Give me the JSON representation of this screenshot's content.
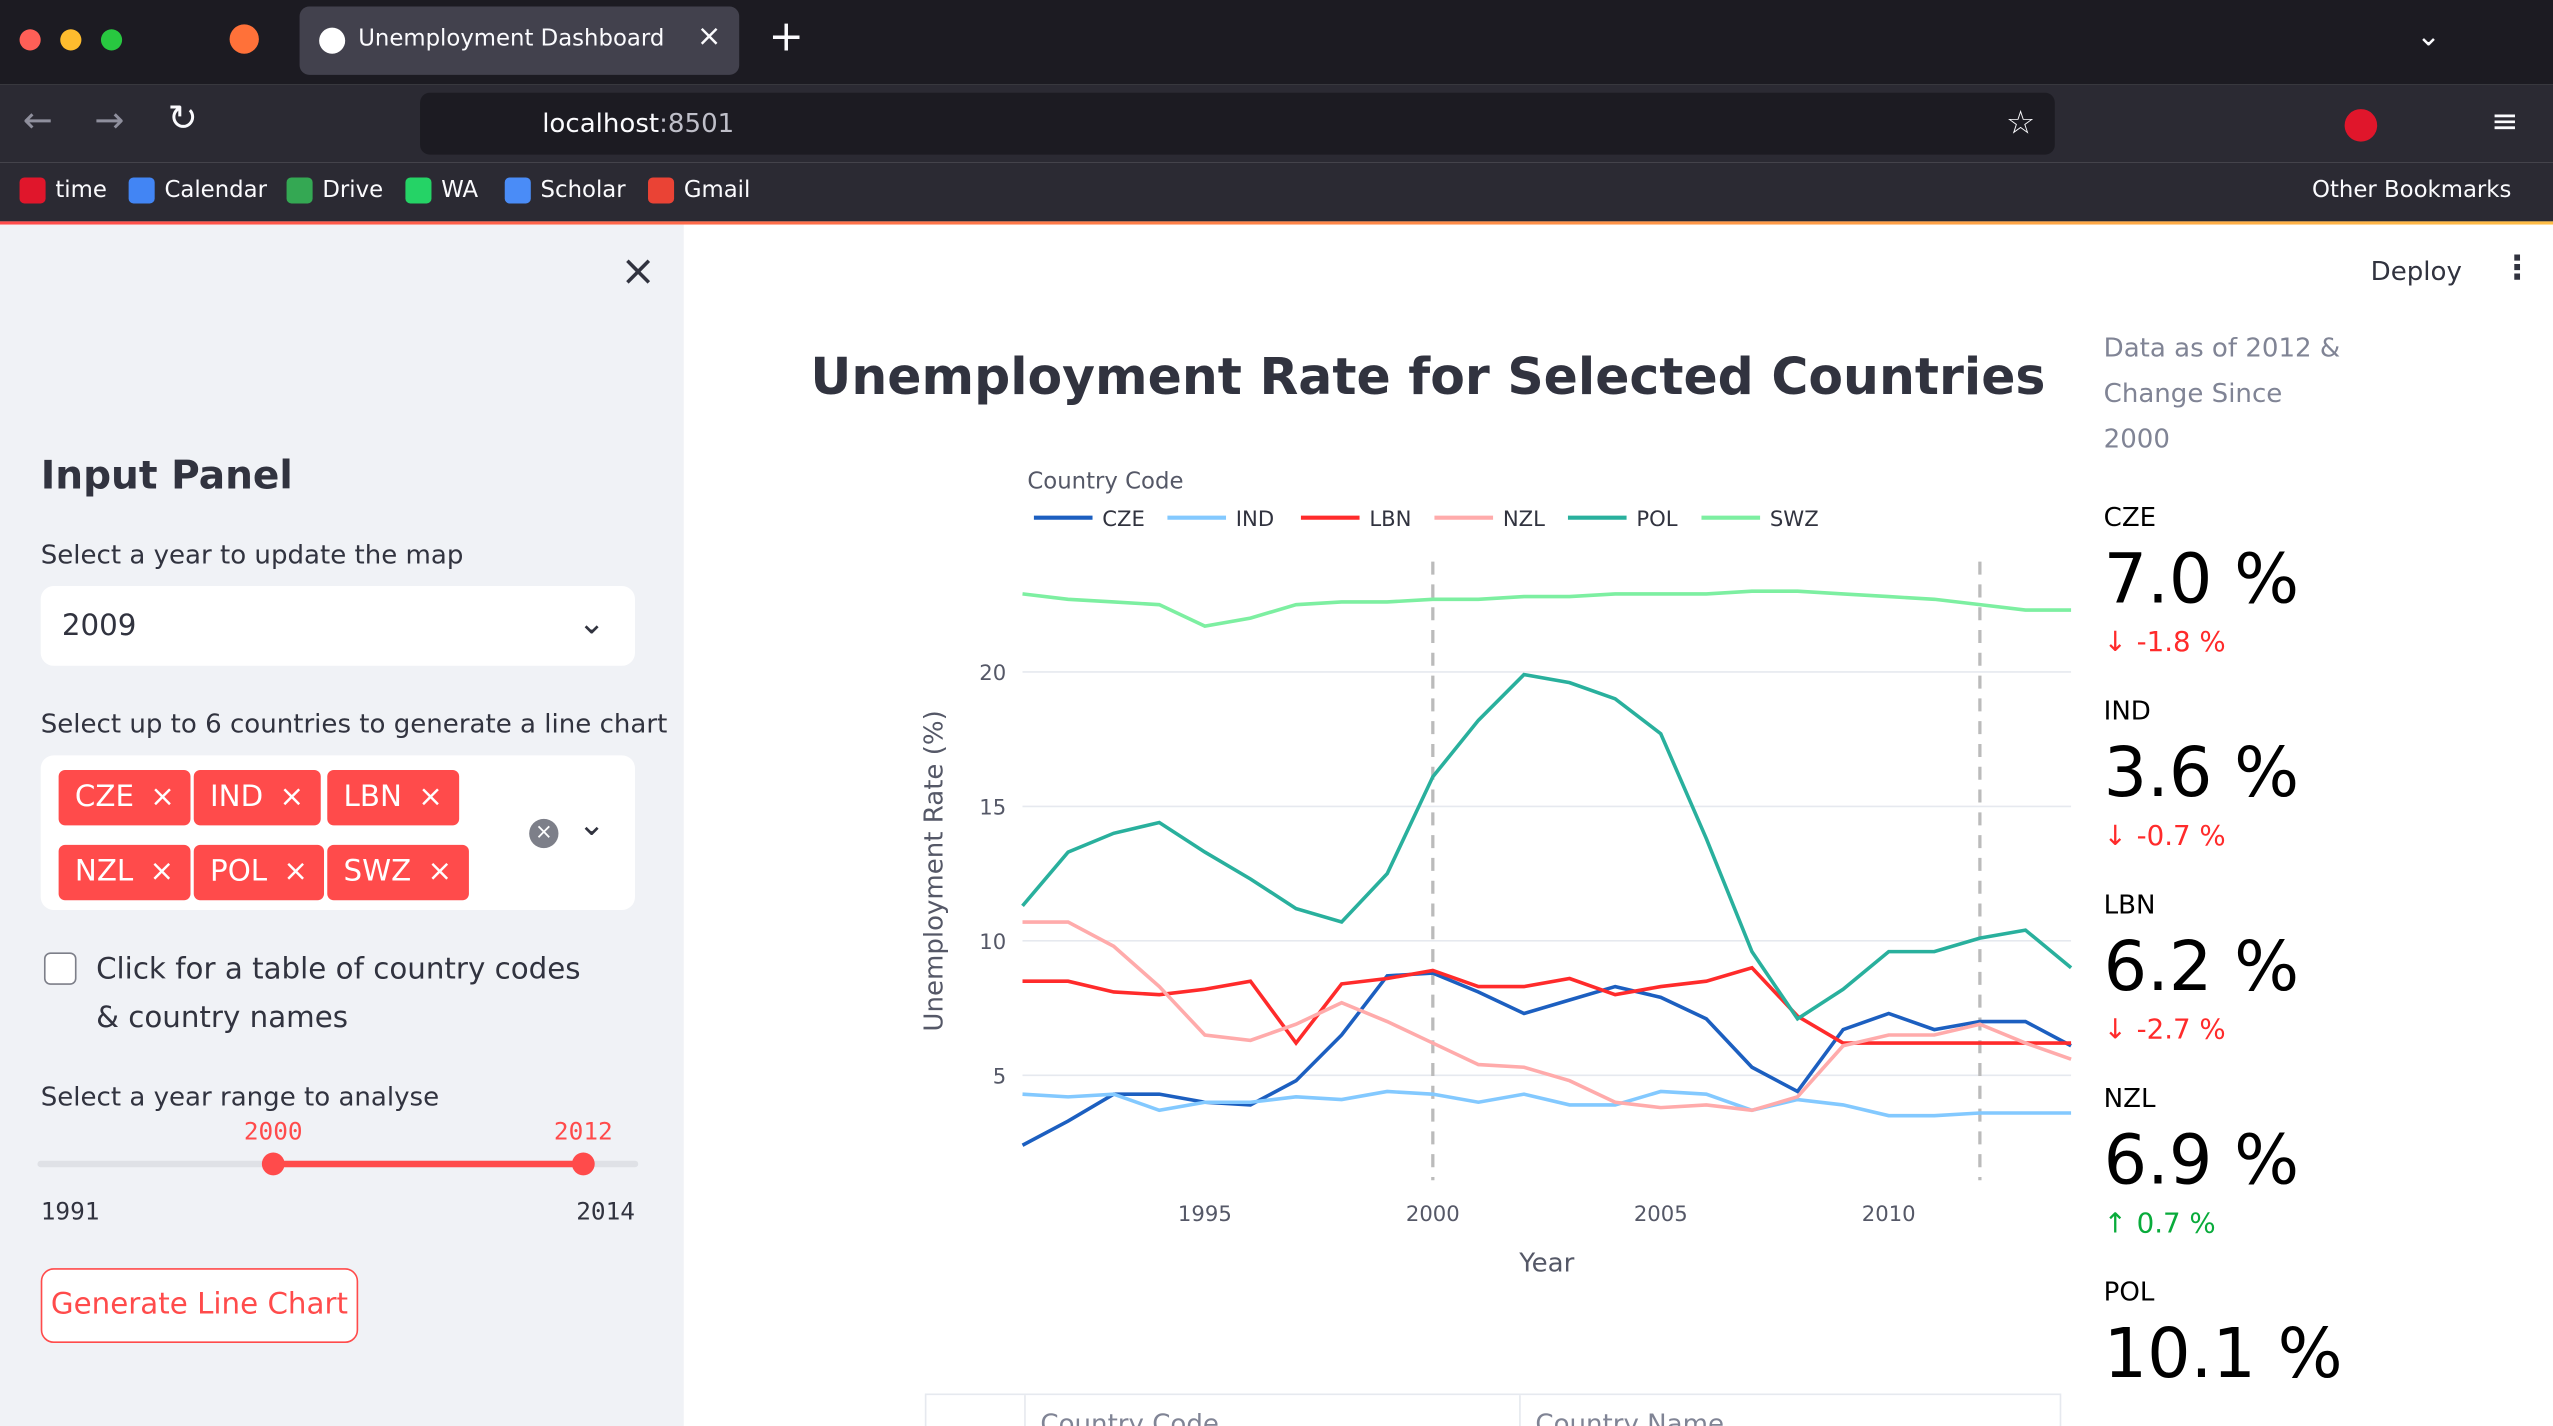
{
  "browser": {
    "tab_title": "Unemployment Dashboard",
    "url_host": "localhost",
    "url_port": ":8501",
    "bookmarks": [
      "time",
      "Calendar",
      "Drive",
      "WA",
      "Scholar",
      "Gmail"
    ],
    "other_bookmarks": "Other Bookmarks"
  },
  "app": {
    "deploy": "Deploy"
  },
  "sidebar": {
    "title": "Input Panel",
    "year_label": "Select a year to update the map",
    "year_value": "2009",
    "countries_label": "Select up to 6 countries to generate a line chart",
    "selected_countries": [
      "CZE",
      "IND",
      "LBN",
      "NZL",
      "POL",
      "SWZ"
    ],
    "checkbox_label": "Click for a table of country codes & country names",
    "range_label": "Select a year range to analyse",
    "range_low": 2000,
    "range_high": 2012,
    "range_min": 1991,
    "range_max": 2014,
    "button": "Generate Line Chart"
  },
  "chart_data": {
    "type": "line",
    "title": "Unemployment Rate for Selected Countries",
    "legend_title": "Country Code",
    "x_label": "Year",
    "y_label": "Unemployment Rate (%)",
    "x": [
      1991,
      1992,
      1993,
      1994,
      1995,
      1996,
      1997,
      1998,
      1999,
      2000,
      2001,
      2002,
      2003,
      2004,
      2005,
      2006,
      2007,
      2008,
      2009,
      2010,
      2011,
      2012,
      2013,
      2014
    ],
    "series": [
      {
        "name": "CZE",
        "color": "#1c5fc0",
        "values": [
          2.4,
          3.3,
          4.3,
          4.3,
          4.0,
          3.9,
          4.8,
          6.5,
          8.7,
          8.8,
          8.1,
          7.3,
          7.8,
          8.3,
          7.9,
          7.1,
          5.3,
          4.4,
          6.7,
          7.3,
          6.7,
          7.0,
          7.0,
          6.1
        ]
      },
      {
        "name": "IND",
        "color": "#83c9ff",
        "values": [
          4.3,
          4.2,
          4.3,
          3.7,
          4.0,
          4.0,
          4.2,
          4.1,
          4.4,
          4.3,
          4.0,
          4.3,
          3.9,
          3.9,
          4.4,
          4.3,
          3.7,
          4.1,
          3.9,
          3.5,
          3.5,
          3.6,
          3.6,
          3.6
        ]
      },
      {
        "name": "LBN",
        "color": "#ff2b2b",
        "values": [
          8.5,
          8.5,
          8.1,
          8.0,
          8.2,
          8.5,
          6.2,
          8.4,
          8.6,
          8.9,
          8.3,
          8.3,
          8.6,
          8.0,
          8.3,
          8.5,
          9.0,
          7.2,
          6.2,
          6.2,
          6.2,
          6.2,
          6.2,
          6.2
        ]
      },
      {
        "name": "NZL",
        "color": "#ffabab",
        "values": [
          10.7,
          10.7,
          9.8,
          8.3,
          6.5,
          6.3,
          6.9,
          7.7,
          7.0,
          6.2,
          5.4,
          5.3,
          4.8,
          4.0,
          3.8,
          3.9,
          3.7,
          4.2,
          6.1,
          6.5,
          6.5,
          6.9,
          6.2,
          5.6
        ]
      },
      {
        "name": "POL",
        "color": "#29b09d",
        "values": [
          11.3,
          13.3,
          14.0,
          14.4,
          13.3,
          12.3,
          11.2,
          10.7,
          12.5,
          16.1,
          18.2,
          19.9,
          19.6,
          19.0,
          17.7,
          13.8,
          9.6,
          7.1,
          8.2,
          9.6,
          9.6,
          10.1,
          10.4,
          9.0
        ]
      },
      {
        "name": "SWZ",
        "color": "#7defa1",
        "values": [
          22.9,
          22.7,
          22.6,
          22.5,
          21.7,
          22.0,
          22.5,
          22.6,
          22.6,
          22.7,
          22.7,
          22.8,
          22.8,
          22.9,
          22.9,
          22.9,
          23.0,
          23.0,
          22.9,
          22.8,
          22.7,
          22.5,
          22.3,
          22.3
        ]
      }
    ],
    "xlim": [
      1991,
      2014
    ],
    "ylim": [
      1.1,
      24.1
    ],
    "xticks": [
      1995,
      2000,
      2005,
      2010
    ],
    "yticks": [
      5,
      10,
      15,
      20
    ],
    "grid": true,
    "reference_lines": [
      2000,
      2012
    ]
  },
  "metrics": {
    "heading": "Data as of 2012 & Change Since 2000",
    "items": [
      {
        "label": "CZE",
        "value": "7.0 %",
        "delta": "-1.8 %"
      },
      {
        "label": "IND",
        "value": "3.6 %",
        "delta": "-0.7 %"
      },
      {
        "label": "LBN",
        "value": "6.2 %",
        "delta": "-2.7 %"
      },
      {
        "label": "NZL",
        "value": "6.9 %",
        "delta": "0.7 %"
      },
      {
        "label": "POL",
        "value": "10.1 %"
      }
    ]
  },
  "table": {
    "headers": [
      "Country Code",
      "Country Name"
    ]
  }
}
